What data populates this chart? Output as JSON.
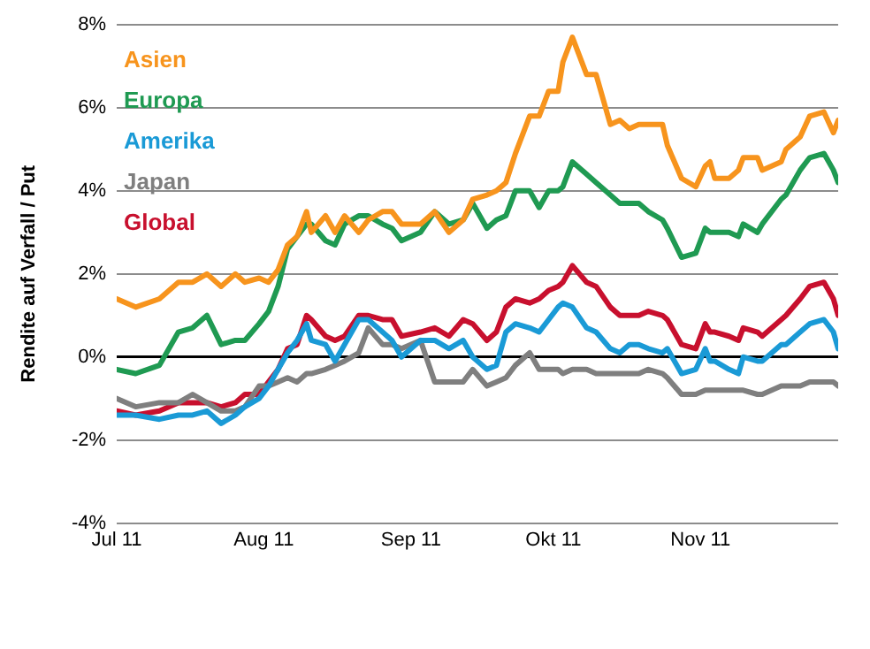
{
  "chart_data": {
    "type": "line",
    "ylabel": "Rendite auf Verfall / Put",
    "x": [
      "2011-07-01",
      "2011-07-05",
      "2011-07-10",
      "2011-07-14",
      "2011-07-17",
      "2011-07-20",
      "2011-07-23",
      "2011-07-26",
      "2011-07-28",
      "2011-07-31",
      "2011-08-02",
      "2011-08-04",
      "2011-08-06",
      "2011-08-08",
      "2011-08-10",
      "2011-08-11",
      "2011-08-14",
      "2011-08-16",
      "2011-08-18",
      "2011-08-21",
      "2011-08-23",
      "2011-08-26",
      "2011-08-28",
      "2011-08-30",
      "2011-09-03",
      "2011-09-06",
      "2011-09-09",
      "2011-09-12",
      "2011-09-14",
      "2011-09-17",
      "2011-09-19",
      "2011-09-21",
      "2011-09-23",
      "2011-09-26",
      "2011-09-28",
      "2011-09-30",
      "2011-10-02",
      "2011-10-03",
      "2011-10-05",
      "2011-10-08",
      "2011-10-10",
      "2011-10-13",
      "2011-10-15",
      "2011-10-17",
      "2011-10-19",
      "2011-10-21",
      "2011-10-24",
      "2011-10-25",
      "2011-10-28",
      "2011-10-31",
      "2011-11-02",
      "2011-11-03",
      "2011-11-04",
      "2011-11-07",
      "2011-11-09",
      "2011-11-10",
      "2011-11-13",
      "2011-11-14",
      "2011-11-18",
      "2011-11-19",
      "2011-11-22",
      "2011-11-24",
      "2011-11-27",
      "2011-11-29",
      "2011-11-30"
    ],
    "series": [
      {
        "name": "Asien",
        "color": "#f7941d",
        "values": [
          1.4,
          1.2,
          1.4,
          1.8,
          1.8,
          2.0,
          1.7,
          2.0,
          1.8,
          1.9,
          1.8,
          2.1,
          2.7,
          2.9,
          3.5,
          3.0,
          3.4,
          3.0,
          3.4,
          3.0,
          3.3,
          3.5,
          3.5,
          3.2,
          3.2,
          3.5,
          3.0,
          3.3,
          3.8,
          3.9,
          4.0,
          4.2,
          4.9,
          5.8,
          5.8,
          6.4,
          6.4,
          7.1,
          7.7,
          6.8,
          6.8,
          5.6,
          5.7,
          5.5,
          5.6,
          5.6,
          5.6,
          5.1,
          4.3,
          4.1,
          4.6,
          4.7,
          4.3,
          4.3,
          4.5,
          4.8,
          4.8,
          4.5,
          4.7,
          5.0,
          5.3,
          5.8,
          5.9,
          5.4,
          5.7
        ]
      },
      {
        "name": "Europa",
        "color": "#1f9a52",
        "values": [
          -0.3,
          -0.4,
          -0.2,
          0.6,
          0.7,
          1.0,
          0.3,
          0.4,
          0.4,
          0.8,
          1.1,
          1.7,
          2.6,
          2.9,
          3.2,
          3.2,
          2.8,
          2.7,
          3.2,
          3.4,
          3.4,
          3.2,
          3.1,
          2.8,
          3.0,
          3.5,
          3.2,
          3.3,
          3.7,
          3.1,
          3.3,
          3.4,
          4.0,
          4.0,
          3.6,
          4.0,
          4.0,
          4.1,
          4.7,
          4.4,
          4.2,
          3.9,
          3.7,
          3.7,
          3.7,
          3.5,
          3.3,
          3.1,
          2.4,
          2.5,
          3.1,
          3.0,
          3.0,
          3.0,
          2.9,
          3.2,
          3.0,
          3.2,
          3.8,
          3.9,
          4.5,
          4.8,
          4.9,
          4.5,
          4.2
        ]
      },
      {
        "name": "Amerika",
        "color": "#1a9ad6",
        "values": [
          -1.4,
          -1.4,
          -1.5,
          -1.4,
          -1.4,
          -1.3,
          -1.6,
          -1.4,
          -1.2,
          -1.0,
          -0.7,
          -0.3,
          0.1,
          0.4,
          0.8,
          0.4,
          0.3,
          -0.1,
          0.3,
          0.9,
          0.9,
          0.6,
          0.4,
          0.0,
          0.4,
          0.4,
          0.2,
          0.4,
          0.0,
          -0.3,
          -0.2,
          0.6,
          0.8,
          0.7,
          0.6,
          0.9,
          1.2,
          1.3,
          1.2,
          0.7,
          0.6,
          0.2,
          0.1,
          0.3,
          0.3,
          0.2,
          0.1,
          0.2,
          -0.4,
          -0.3,
          0.2,
          -0.1,
          -0.1,
          -0.3,
          -0.4,
          0.0,
          -0.1,
          -0.1,
          0.3,
          0.3,
          0.6,
          0.8,
          0.9,
          0.6,
          0.2
        ]
      },
      {
        "name": "Japan",
        "color": "#7f7f7f",
        "values": [
          -1.0,
          -1.2,
          -1.1,
          -1.1,
          -0.9,
          -1.1,
          -1.3,
          -1.3,
          -1.2,
          -0.7,
          -0.7,
          -0.6,
          -0.5,
          -0.6,
          -0.4,
          -0.4,
          -0.3,
          -0.2,
          -0.1,
          0.1,
          0.7,
          0.3,
          0.3,
          0.2,
          0.4,
          -0.6,
          -0.6,
          -0.6,
          -0.3,
          -0.7,
          -0.6,
          -0.5,
          -0.2,
          0.1,
          -0.3,
          -0.3,
          -0.3,
          -0.4,
          -0.3,
          -0.3,
          -0.4,
          -0.4,
          -0.4,
          -0.4,
          -0.4,
          -0.3,
          -0.4,
          -0.5,
          -0.9,
          -0.9,
          -0.8,
          -0.8,
          -0.8,
          -0.8,
          -0.8,
          -0.8,
          -0.9,
          -0.9,
          -0.7,
          -0.7,
          -0.7,
          -0.6,
          -0.6,
          -0.6,
          -0.7
        ]
      },
      {
        "name": "Global",
        "color": "#c8102e",
        "values": [
          -1.3,
          -1.4,
          -1.3,
          -1.1,
          -1.1,
          -1.1,
          -1.2,
          -1.1,
          -0.9,
          -0.9,
          -0.6,
          -0.3,
          0.2,
          0.3,
          1.0,
          0.9,
          0.5,
          0.4,
          0.5,
          1.0,
          1.0,
          0.9,
          0.9,
          0.5,
          0.6,
          0.7,
          0.5,
          0.9,
          0.8,
          0.4,
          0.6,
          1.2,
          1.4,
          1.3,
          1.4,
          1.6,
          1.7,
          1.8,
          2.2,
          1.8,
          1.7,
          1.2,
          1.0,
          1.0,
          1.0,
          1.1,
          1.0,
          0.9,
          0.3,
          0.2,
          0.8,
          0.6,
          0.6,
          0.5,
          0.4,
          0.7,
          0.6,
          0.5,
          0.9,
          1.0,
          1.4,
          1.7,
          1.8,
          1.4,
          1.0
        ]
      }
    ],
    "xlim": [
      "2011-07-01",
      "2011-11-30"
    ],
    "xticks": [
      {
        "value": "2011-07-01",
        "label": "Jul 11"
      },
      {
        "value": "2011-08-01",
        "label": "Aug 11"
      },
      {
        "value": "2011-09-01",
        "label": "Sep 11"
      },
      {
        "value": "2011-10-01",
        "label": "Okt 11"
      },
      {
        "value": "2011-11-01",
        "label": "Nov 11"
      }
    ],
    "ylim": [
      -4,
      8
    ],
    "yticks": [
      {
        "value": -4,
        "label": "-4%"
      },
      {
        "value": -2,
        "label": "-2%"
      },
      {
        "value": 0,
        "label": "0%"
      },
      {
        "value": 2,
        "label": "2%"
      },
      {
        "value": 4,
        "label": "4%"
      },
      {
        "value": 6,
        "label": "6%"
      },
      {
        "value": 8,
        "label": "8%"
      }
    ],
    "grid": "y",
    "legend": "top left",
    "marker": "none",
    "line_style": "solid"
  }
}
